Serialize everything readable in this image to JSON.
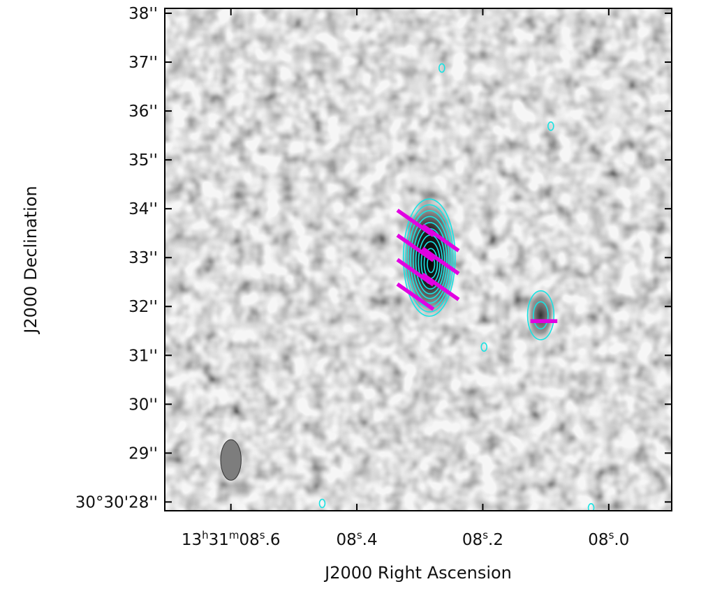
{
  "chart_data": {
    "type": "image",
    "xlabel": "J2000 Right Ascension",
    "ylabel": "J2000 Declination",
    "x_ticks": [
      {
        "value": 8.6,
        "h": "13",
        "m": "31",
        "s": "08",
        "frac": ".6"
      },
      {
        "value": 8.4,
        "h": "",
        "m": "",
        "s": "08",
        "frac": ".4"
      },
      {
        "value": 8.2,
        "h": "",
        "m": "",
        "s": "08",
        "frac": ".2"
      },
      {
        "value": 8.0,
        "h": "",
        "m": "",
        "s": "08",
        "frac": ".0"
      }
    ],
    "y_ticks": [
      {
        "value": 28,
        "label": "30°30'28''"
      },
      {
        "value": 29,
        "label": "29''"
      },
      {
        "value": 30,
        "label": "30''"
      },
      {
        "value": 31,
        "label": "31''"
      },
      {
        "value": 32,
        "label": "32''"
      },
      {
        "value": 33,
        "label": "33''"
      },
      {
        "value": 34,
        "label": "34''"
      },
      {
        "value": 35,
        "label": "35''"
      },
      {
        "value": 36,
        "label": "36''"
      },
      {
        "value": 37,
        "label": "37''"
      },
      {
        "value": 38,
        "label": "38''"
      }
    ],
    "xlim": [
      8.705,
      7.9
    ],
    "ylim": [
      27.82,
      38.1
    ],
    "colormap": "grayscale (white = low, black = high)",
    "contour_color": "#19e3e3",
    "vector_color": "#e100e1",
    "sources": [
      {
        "name": "bright source",
        "ra_s": 8.285,
        "dec": 33.0,
        "semi_major_arcsec": 1.2,
        "semi_minor_arcsec": 0.53,
        "contour_levels": 10,
        "peak_ra_s": 8.282,
        "peak_dec": 32.85
      },
      {
        "name": "faint source",
        "ra_s": 8.108,
        "dec": 31.82,
        "semi_major_arcsec": 0.5,
        "semi_minor_arcsec": 0.27,
        "contour_levels": 2
      }
    ],
    "polarization_vectors": [
      {
        "ra_s": 8.307,
        "dec": 33.71,
        "length_arcsec": 0.9,
        "angle_deg": 35
      },
      {
        "ra_s": 8.307,
        "dec": 33.2,
        "length_arcsec": 0.9,
        "angle_deg": 35
      },
      {
        "ra_s": 8.307,
        "dec": 32.7,
        "length_arcsec": 0.9,
        "angle_deg": 35
      },
      {
        "ra_s": 8.307,
        "dec": 32.2,
        "length_arcsec": 0.9,
        "angle_deg": 35
      },
      {
        "ra_s": 8.267,
        "dec": 33.4,
        "length_arcsec": 0.9,
        "angle_deg": 35
      },
      {
        "ra_s": 8.267,
        "dec": 32.93,
        "length_arcsec": 0.9,
        "angle_deg": 35
      },
      {
        "ra_s": 8.267,
        "dec": 32.4,
        "length_arcsec": 0.9,
        "angle_deg": 35
      },
      {
        "ra_s": 8.103,
        "dec": 31.7,
        "length_arcsec": 0.55,
        "angle_deg": 0
      }
    ],
    "noise_contours": [
      {
        "ra_s": 8.265,
        "dec": 36.88
      },
      {
        "ra_s": 8.092,
        "dec": 35.69
      },
      {
        "ra_s": 8.198,
        "dec": 31.17
      },
      {
        "ra_s": 8.455,
        "dec": 27.97
      },
      {
        "ra_s": 8.028,
        "dec": 27.88
      }
    ],
    "beam": {
      "ra_s": 8.6,
      "dec": 28.86,
      "major_arcsec": 0.83,
      "minor_arcsec": 0.42,
      "pa_deg": 0
    }
  }
}
